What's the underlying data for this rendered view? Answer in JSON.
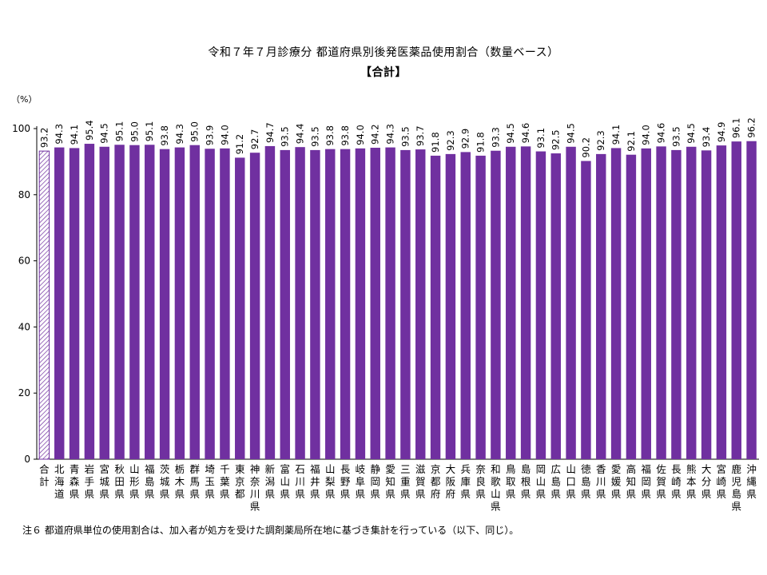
{
  "header": {
    "title": "令和７年７月診療分 都道府県別後発医薬品使用割合（数量ベース）",
    "subtitle": "【合計】",
    "unit": "（%）"
  },
  "footnote": "注６ 都道府県単位の使用割合は、加入者が処方を受けた調剤薬局所在地に基づき集計を行っている（以下、同じ）。",
  "colors": {
    "bar": "#7030a0",
    "total_hatch": "#7030a0",
    "axis": "#000000"
  },
  "chart_data": {
    "type": "bar",
    "title": "令和７年７月診療分 都道府県別後発医薬品使用割合（数量ベース）",
    "subtitle": "【合計】",
    "xlabel": "",
    "ylabel": "（%）",
    "ylim": [
      0,
      100
    ],
    "yticks": [
      0,
      20,
      40,
      60,
      80,
      100
    ],
    "grid": false,
    "categories": [
      "合計",
      "北海道",
      "青森県",
      "岩手県",
      "宮城県",
      "秋田県",
      "山形県",
      "福島県",
      "茨城県",
      "栃木県",
      "群馬県",
      "埼玉県",
      "千葉県",
      "東京都",
      "神奈川県",
      "新潟県",
      "富山県",
      "石川県",
      "福井県",
      "山梨県",
      "長野県",
      "岐阜県",
      "静岡県",
      "愛知県",
      "三重県",
      "滋賀県",
      "京都府",
      "大阪府",
      "兵庫県",
      "奈良県",
      "和歌山県",
      "鳥取県",
      "島根県",
      "岡山県",
      "広島県",
      "山口県",
      "徳島県",
      "香川県",
      "愛媛県",
      "高知県",
      "福岡県",
      "佐賀県",
      "長崎県",
      "熊本県",
      "大分県",
      "宮崎県",
      "鹿児島県",
      "沖縄県"
    ],
    "values": [
      93.2,
      94.3,
      94.1,
      95.4,
      94.5,
      95.1,
      95.0,
      95.1,
      93.8,
      94.3,
      95.0,
      93.9,
      94.0,
      91.2,
      92.7,
      94.7,
      93.5,
      94.4,
      93.5,
      93.8,
      93.8,
      94.0,
      94.2,
      94.3,
      93.5,
      93.7,
      91.8,
      92.3,
      92.9,
      91.8,
      93.3,
      94.5,
      94.6,
      93.1,
      92.5,
      94.5,
      90.2,
      92.3,
      94.1,
      92.1,
      94.0,
      94.6,
      93.5,
      94.5,
      93.4,
      94.9,
      96.1,
      96.2
    ],
    "data_labels": [
      "93.2",
      "94.3",
      "94.1",
      "95.4",
      "94.5",
      "95.1",
      "95.0",
      "95.1",
      "93.8",
      "94.3",
      "95.0",
      "93.9",
      "94.0",
      "91.2",
      "92.7",
      "94.7",
      "93.5",
      "94.4",
      "93.5",
      "93.8",
      "93.8",
      "94.0",
      "94.2",
      "94.3",
      "93.5",
      "93.7",
      "91.8",
      "92.3",
      "92.9",
      "91.8",
      "93.3",
      "94.5",
      "94.6",
      "93.1",
      "92.5",
      "94.5",
      "90.2",
      "92.3",
      "94.1",
      "92.1",
      "94.0",
      "94.6",
      "93.5",
      "94.5",
      "93.4",
      "94.9",
      "96.1",
      "96.2"
    ],
    "highlight": {
      "index": 0,
      "style": "hatched"
    }
  }
}
